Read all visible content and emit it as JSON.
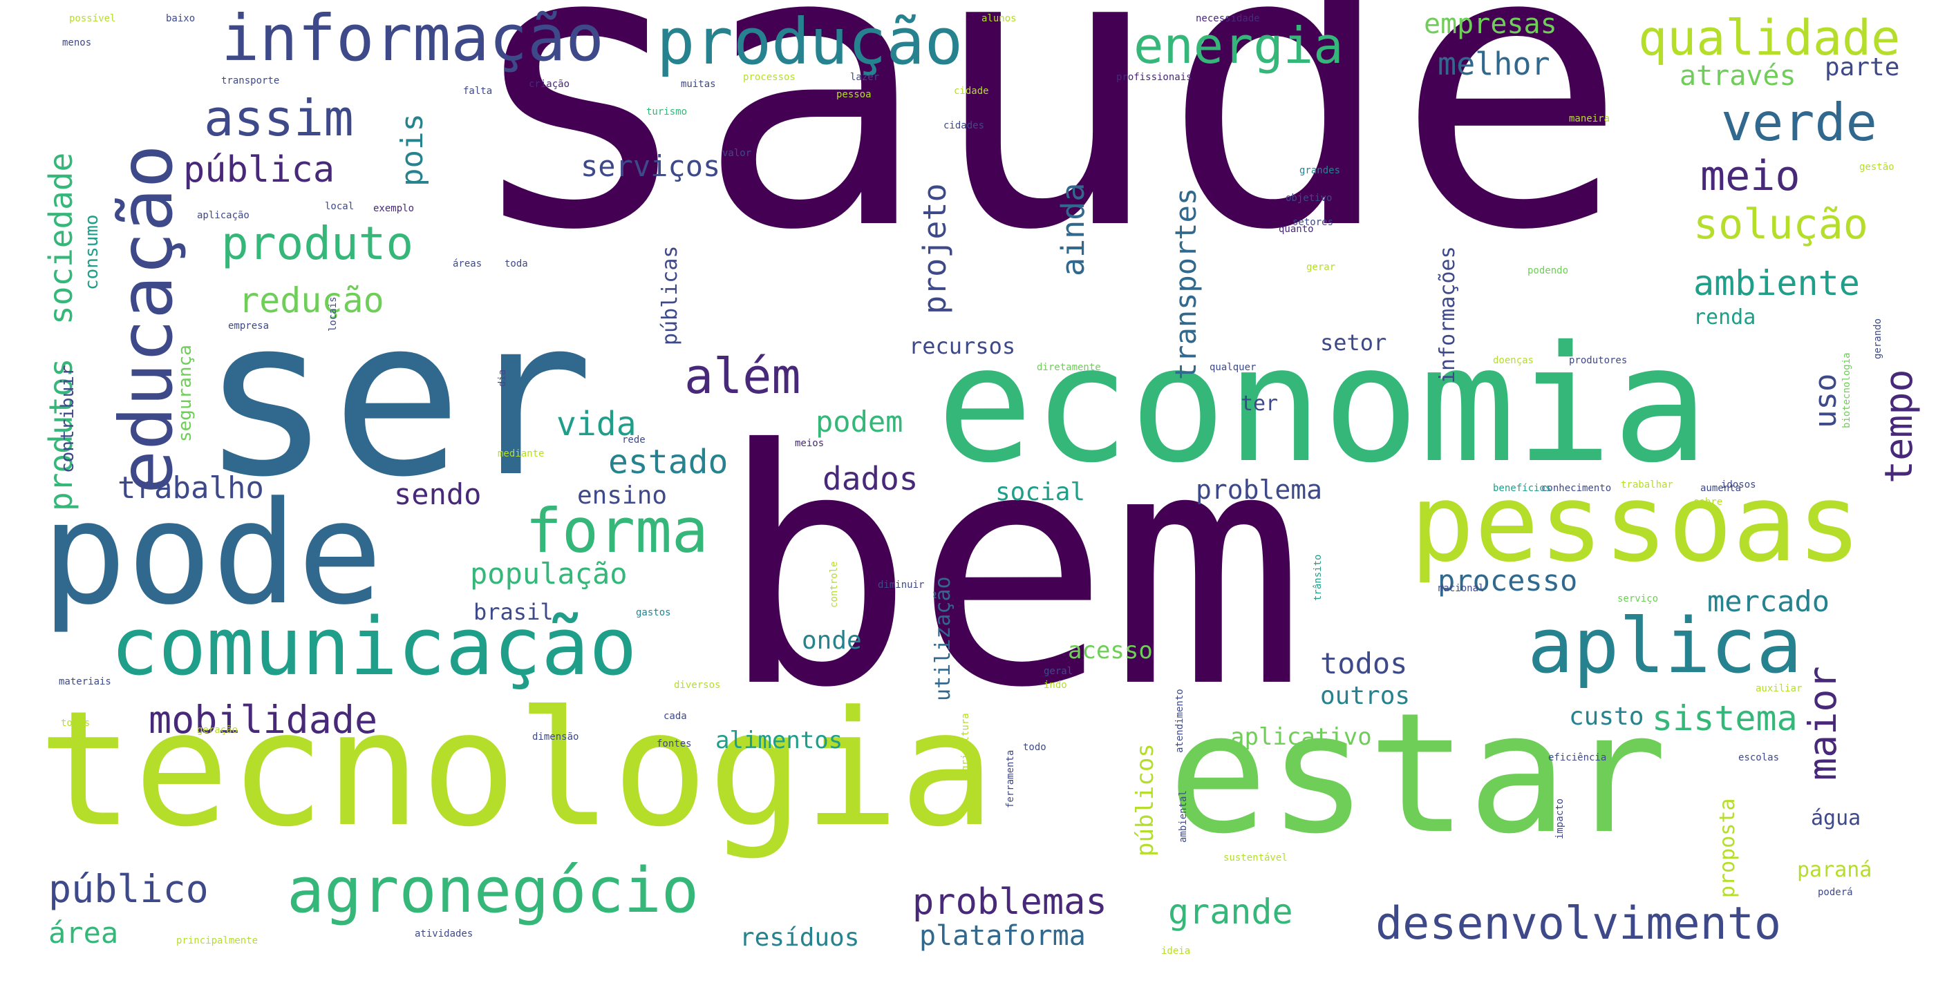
{
  "palette": {
    "dark_purple": "#440154",
    "purple": "#482878",
    "indigo": "#3e4989",
    "blue": "#31688e",
    "teal": "#26828e",
    "green_teal": "#1f9e89",
    "green": "#35b779",
    "light_green": "#6ece58",
    "yellow_green": "#b5de2b"
  },
  "words": [
    {
      "text": "saúde",
      "color": "#440154"
    },
    {
      "text": "bem",
      "color": "#440154"
    },
    {
      "text": "ser",
      "color": "#31688e"
    },
    {
      "text": "economia",
      "color": "#35b779"
    },
    {
      "text": "tecnologia",
      "color": "#b5de2b"
    },
    {
      "text": "estar",
      "color": "#6ece58"
    },
    {
      "text": "pode",
      "color": "#31688e"
    },
    {
      "text": "pessoas",
      "color": "#b5de2b"
    },
    {
      "text": "comunicação",
      "color": "#1f9e89"
    },
    {
      "text": "aplica",
      "color": "#26828e"
    },
    {
      "text": "agronegócio",
      "color": "#35b779"
    },
    {
      "text": "desenvolvimento",
      "color": "#3e4989"
    },
    {
      "text": "informação",
      "color": "#3e4989"
    },
    {
      "text": "produção",
      "color": "#26828e"
    },
    {
      "text": "educação",
      "color": "#3e4989"
    },
    {
      "text": "forma",
      "color": "#35b779"
    },
    {
      "text": "assim",
      "color": "#3e4989"
    },
    {
      "text": "energia",
      "color": "#35b779"
    },
    {
      "text": "qualidade",
      "color": "#b5de2b"
    },
    {
      "text": "verde",
      "color": "#31688e"
    },
    {
      "text": "produto",
      "color": "#35b779"
    },
    {
      "text": "além",
      "color": "#482878"
    },
    {
      "text": "mobilidade",
      "color": "#482878"
    },
    {
      "text": "público",
      "color": "#3e4989"
    },
    {
      "text": "problemas",
      "color": "#482878"
    },
    {
      "text": "grande",
      "color": "#35b779"
    },
    {
      "text": "maior",
      "color": "#482878"
    },
    {
      "text": "tempo",
      "color": "#482878"
    },
    {
      "text": "sistema",
      "color": "#35b779"
    },
    {
      "text": "solução",
      "color": "#b5de2b"
    },
    {
      "text": "ambiente",
      "color": "#1f9e89"
    },
    {
      "text": "meio",
      "color": "#482878"
    },
    {
      "text": "pública",
      "color": "#482878"
    },
    {
      "text": "redução",
      "color": "#6ece58"
    },
    {
      "text": "projeto",
      "color": "#3e4989"
    },
    {
      "text": "ainda",
      "color": "#31688e"
    },
    {
      "text": "transportes",
      "color": "#31688e"
    },
    {
      "text": "vida",
      "color": "#1f9e89"
    },
    {
      "text": "estado",
      "color": "#26828e"
    },
    {
      "text": "podem",
      "color": "#35b779"
    },
    {
      "text": "dados",
      "color": "#482878"
    },
    {
      "text": "população",
      "color": "#35b779"
    },
    {
      "text": "trabalho",
      "color": "#3e4989"
    },
    {
      "text": "sendo",
      "color": "#482878"
    },
    {
      "text": "ensino",
      "color": "#3e4989"
    },
    {
      "text": "social",
      "color": "#1f9e89"
    },
    {
      "text": "problema",
      "color": "#3e4989"
    },
    {
      "text": "processo",
      "color": "#31688e"
    },
    {
      "text": "mercado",
      "color": "#26828e"
    },
    {
      "text": "todos",
      "color": "#3e4989"
    },
    {
      "text": "outros",
      "color": "#26828e"
    },
    {
      "text": "custo",
      "color": "#26828e"
    },
    {
      "text": "serviços",
      "color": "#3e4989"
    },
    {
      "text": "melhor",
      "color": "#31688e"
    },
    {
      "text": "empresas",
      "color": "#6ece58"
    },
    {
      "text": "através",
      "color": "#6ece58"
    },
    {
      "text": "parte",
      "color": "#3e4989"
    },
    {
      "text": "sociedade",
      "color": "#35b779"
    },
    {
      "text": "produtos",
      "color": "#35b779"
    },
    {
      "text": "pois",
      "color": "#26828e"
    },
    {
      "text": "uso",
      "color": "#3e4989"
    },
    {
      "text": "área",
      "color": "#35b779"
    },
    {
      "text": "plataforma",
      "color": "#31688e"
    },
    {
      "text": "resíduos",
      "color": "#26828e"
    },
    {
      "text": "alimentos",
      "color": "#1f9e89"
    },
    {
      "text": "aplicativo",
      "color": "#6ece58"
    },
    {
      "text": "acesso",
      "color": "#6ece58"
    },
    {
      "text": "onde",
      "color": "#26828e"
    },
    {
      "text": "brasil",
      "color": "#3e4989"
    },
    {
      "text": "recursos",
      "color": "#3e4989"
    },
    {
      "text": "setor",
      "color": "#3e4989"
    },
    {
      "text": "renda",
      "color": "#1f9e89"
    },
    {
      "text": "ter",
      "color": "#3e4989"
    },
    {
      "text": "informações",
      "color": "#3e4989"
    },
    {
      "text": "públicas",
      "color": "#3e4989"
    },
    {
      "text": "públicos",
      "color": "#b5de2b"
    },
    {
      "text": "utilização",
      "color": "#31688e"
    },
    {
      "text": "água",
      "color": "#3e4989"
    },
    {
      "text": "paraná",
      "color": "#b5de2b"
    },
    {
      "text": "proposta",
      "color": "#b5de2b"
    },
    {
      "text": "consumo",
      "color": "#1f9e89"
    },
    {
      "text": "contribuir",
      "color": "#3e4989"
    },
    {
      "text": "segurança",
      "color": "#6ece58"
    },
    {
      "text": "possível",
      "color": "#b5de2b"
    },
    {
      "text": "menos",
      "color": "#3e4989"
    },
    {
      "text": "baixo",
      "color": "#3e4989"
    },
    {
      "text": "transporte",
      "color": "#3e4989"
    },
    {
      "text": "falta",
      "color": "#3e4989"
    },
    {
      "text": "criação",
      "color": "#482878"
    },
    {
      "text": "muitas",
      "color": "#3e4989"
    },
    {
      "text": "processos",
      "color": "#b5de2b"
    },
    {
      "text": "lazer",
      "color": "#3e4989"
    },
    {
      "text": "alunos",
      "color": "#b5de2b"
    },
    {
      "text": "necessidade",
      "color": "#482878"
    },
    {
      "text": "cidade",
      "color": "#b5de2b"
    },
    {
      "text": "profissionais",
      "color": "#482878"
    },
    {
      "text": "cidades",
      "color": "#3e4989"
    },
    {
      "text": "turismo",
      "color": "#35b779"
    },
    {
      "text": "valor",
      "color": "#3e4989"
    },
    {
      "text": "grandes",
      "color": "#26828e"
    },
    {
      "text": "objetivo",
      "color": "#3e4989"
    },
    {
      "text": "quanto",
      "color": "#482878"
    },
    {
      "text": "gerar",
      "color": "#b5de2b"
    },
    {
      "text": "maneira",
      "color": "#b5de2b"
    },
    {
      "text": "qualquer",
      "color": "#3e4989"
    },
    {
      "text": "diretamente",
      "color": "#6ece58"
    },
    {
      "text": "dia",
      "color": "#3e4989"
    },
    {
      "text": "rede",
      "color": "#3e4989"
    },
    {
      "text": "mediante",
      "color": "#b5de2b"
    },
    {
      "text": "exemplo",
      "color": "#482878"
    },
    {
      "text": "aplicação",
      "color": "#3e4989"
    },
    {
      "text": "local",
      "color": "#3e4989"
    },
    {
      "text": "áreas",
      "color": "#3e4989"
    },
    {
      "text": "toda",
      "color": "#3e4989"
    },
    {
      "text": "empresa",
      "color": "#3e4989"
    },
    {
      "text": "locais",
      "color": "#3e4989"
    },
    {
      "text": "doenças",
      "color": "#b5de2b"
    },
    {
      "text": "produtores",
      "color": "#3e4989"
    },
    {
      "text": "podendo",
      "color": "#6ece58"
    },
    {
      "text": "serviço",
      "color": "#6ece58"
    },
    {
      "text": "nacional",
      "color": "#3e4989"
    },
    {
      "text": "conhecimento",
      "color": "#3e4989"
    },
    {
      "text": "benefícios",
      "color": "#1f9e89"
    },
    {
      "text": "trabalhar",
      "color": "#b5de2b"
    },
    {
      "text": "idosos",
      "color": "#3e4989"
    },
    {
      "text": "sobre",
      "color": "#b5de2b"
    },
    {
      "text": "diminuir",
      "color": "#3e4989"
    },
    {
      "text": "gastos",
      "color": "#26828e"
    },
    {
      "text": "controle",
      "color": "#b5de2b"
    },
    {
      "text": "geral",
      "color": "#3e4989"
    },
    {
      "text": "materiais",
      "color": "#3e4989"
    },
    {
      "text": "diversos",
      "color": "#b5de2b"
    },
    {
      "text": "todas",
      "color": "#b5de2b"
    },
    {
      "text": "geração",
      "color": "#b5de2b"
    },
    {
      "text": "cada",
      "color": "#3e4989"
    },
    {
      "text": "dimensão",
      "color": "#3e4989"
    },
    {
      "text": "fontes",
      "color": "#3e4989"
    },
    {
      "text": "todo",
      "color": "#3e4989"
    },
    {
      "text": "auxiliar",
      "color": "#b5de2b"
    },
    {
      "text": "eficiência",
      "color": "#3e4989"
    },
    {
      "text": "escolas",
      "color": "#3e4989"
    },
    {
      "text": "sustentável",
      "color": "#b5de2b"
    },
    {
      "text": "ambiental",
      "color": "#3e4989"
    },
    {
      "text": "impacto",
      "color": "#3e4989"
    },
    {
      "text": "poderá",
      "color": "#3e4989"
    },
    {
      "text": "atividades",
      "color": "#3e4989"
    },
    {
      "text": "principalmente",
      "color": "#b5de2b"
    },
    {
      "text": "ideia",
      "color": "#b5de2b"
    },
    {
      "text": "ferramenta",
      "color": "#3e4989"
    },
    {
      "text": "agricultura",
      "color": "#b5de2b"
    },
    {
      "text": "atendimento",
      "color": "#3e4989"
    },
    {
      "text": "gerando",
      "color": "#3e4989"
    },
    {
      "text": "biotecnologia",
      "color": "#6ece58"
    },
    {
      "text": "gestão",
      "color": "#b5de2b"
    },
    {
      "text": "aumenta",
      "color": "#3e4989"
    },
    {
      "text": "trânsito",
      "color": "#1f9e89"
    },
    {
      "text": "indo",
      "color": "#b5de2b"
    },
    {
      "text": "meios",
      "color": "#482878"
    },
    {
      "text": "pessoa",
      "color": "#b5de2b"
    },
    {
      "text": "setores",
      "color": "#3e4989"
    }
  ]
}
